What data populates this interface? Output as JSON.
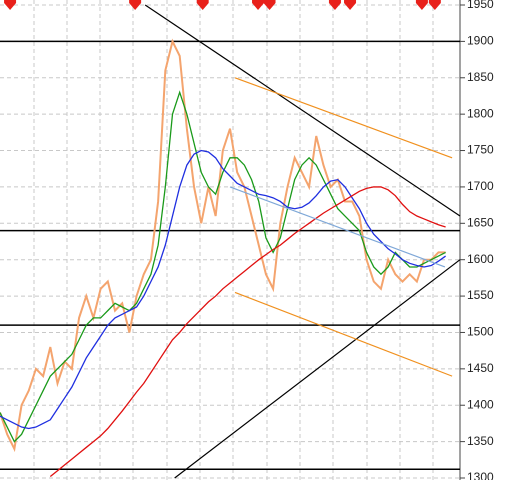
{
  "chart_data": {
    "type": "line",
    "ylim": [
      1300,
      1950
    ],
    "yticks": [
      1300,
      1350,
      1400,
      1450,
      1500,
      1550,
      1600,
      1650,
      1700,
      1750,
      1800,
      1850,
      1900,
      1950
    ],
    "xlim": [
      0,
      64
    ],
    "grid": true,
    "series": [
      {
        "color": "#f4a46e",
        "values": [
          1390,
          1360,
          1340,
          1400,
          1420,
          1450,
          1440,
          1480,
          1430,
          1460,
          1450,
          1520,
          1550,
          1520,
          1560,
          1570,
          1530,
          1540,
          1500,
          1550,
          1580,
          1600,
          1680,
          1860,
          1900,
          1880,
          1780,
          1700,
          1650,
          1700,
          1660,
          1750,
          1780,
          1720,
          1700,
          1660,
          1620,
          1580,
          1560,
          1650,
          1700,
          1740,
          1720,
          1700,
          1770,
          1730,
          1700,
          1710,
          1680,
          1680,
          1660,
          1600,
          1570,
          1560,
          1600,
          1580,
          1570,
          1580,
          1570,
          1600,
          1600,
          1610,
          1610
        ]
      },
      {
        "color": "#1a9a1a",
        "values": [
          1390,
          1370,
          1350,
          1360,
          1380,
          1400,
          1420,
          1440,
          1450,
          1460,
          1470,
          1490,
          1510,
          1520,
          1520,
          1530,
          1540,
          1535,
          1530,
          1540,
          1560,
          1580,
          1620,
          1700,
          1800,
          1830,
          1800,
          1760,
          1720,
          1700,
          1690,
          1720,
          1740,
          1740,
          1730,
          1710,
          1680,
          1630,
          1610,
          1630,
          1670,
          1710,
          1730,
          1740,
          1730,
          1710,
          1690,
          1670,
          1660,
          1650,
          1640,
          1610,
          1590,
          1580,
          1590,
          1610,
          1600,
          1590,
          1590,
          1595,
          1600,
          1605,
          1610
        ]
      },
      {
        "color": "#1f2fe0",
        "values": [
          1385,
          1380,
          1375,
          1370,
          1368,
          1370,
          1375,
          1380,
          1395,
          1410,
          1425,
          1445,
          1465,
          1480,
          1495,
          1510,
          1520,
          1525,
          1530,
          1535,
          1550,
          1570,
          1590,
          1620,
          1660,
          1700,
          1730,
          1745,
          1750,
          1748,
          1740,
          1725,
          1715,
          1705,
          1700,
          1695,
          1690,
          1688,
          1685,
          1680,
          1672,
          1670,
          1672,
          1678,
          1688,
          1700,
          1708,
          1710,
          1700,
          1685,
          1670,
          1650,
          1635,
          1625,
          1615,
          1608,
          1600,
          1595,
          1592,
          1590,
          1592,
          1598,
          1605
        ]
      },
      {
        "color": "#e01010",
        "values": [
          null,
          null,
          null,
          null,
          null,
          null,
          null,
          1302,
          1310,
          1318,
          1326,
          1334,
          1342,
          1350,
          1358,
          1368,
          1380,
          1392,
          1405,
          1418,
          1430,
          1445,
          1460,
          1475,
          1490,
          1500,
          1512,
          1522,
          1532,
          1542,
          1550,
          1560,
          1568,
          1576,
          1584,
          1592,
          1600,
          1607,
          1614,
          1620,
          1628,
          1636,
          1643,
          1650,
          1657,
          1664,
          1670,
          1676,
          1682,
          1688,
          1694,
          1698,
          1700,
          1700,
          1696,
          1688,
          1676,
          1666,
          1660,
          1656,
          1652,
          1648,
          1645
        ]
      }
    ],
    "hlines": [
      1900,
      1640,
      1510,
      1312
    ],
    "trendlines": [
      {
        "color": "#000000",
        "x": [
          20.2,
          64
        ],
        "values": [
          1950,
          1660
        ]
      },
      {
        "color": "#000000",
        "x": [
          24.3,
          64
        ],
        "values": [
          1300,
          1600
        ]
      },
      {
        "color": "#f0901e",
        "x": [
          32.7,
          62.9
        ],
        "values": [
          1850,
          1740
        ]
      },
      {
        "color": "#f0901e",
        "x": [
          32.7,
          62.9
        ],
        "values": [
          1555,
          1440
        ]
      },
      {
        "color": "#7fa8d8",
        "x": [
          32,
          61.9
        ],
        "values": [
          1700,
          1590
        ]
      }
    ],
    "signals": [
      1.4,
      18.8,
      28.2,
      35.9,
      37.5,
      46.6,
      48.7,
      58.7,
      60.5
    ],
    "signal_color": "#e8201a"
  }
}
